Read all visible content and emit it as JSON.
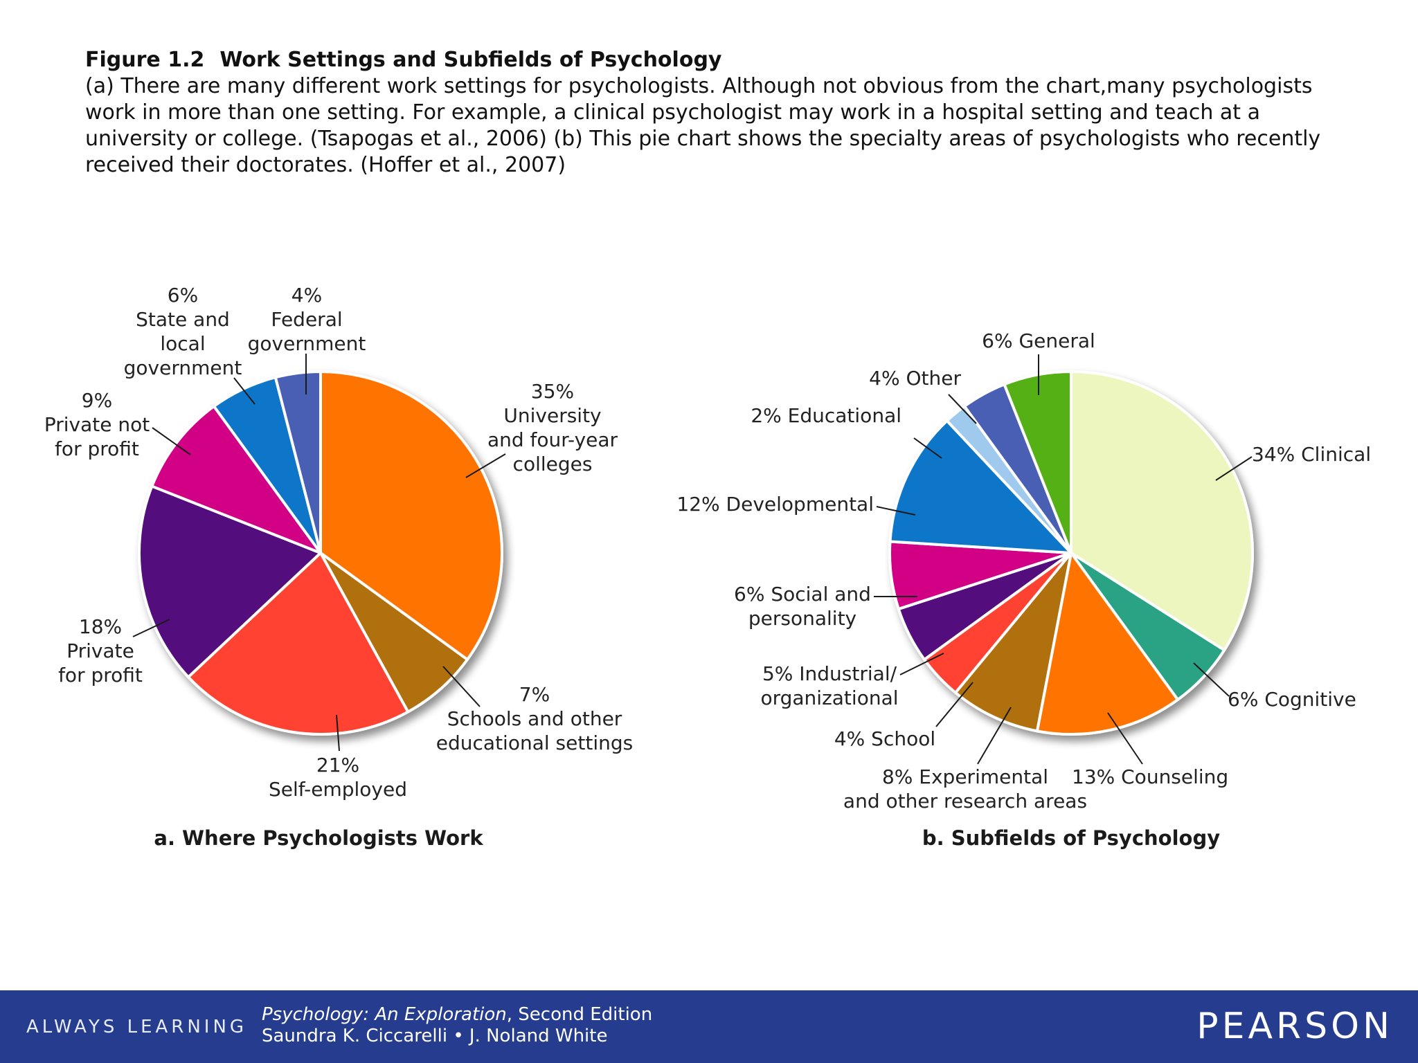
{
  "caption": {
    "figure_number": "Figure 1.2",
    "figure_title": "Work Settings and Subfields of Psychology",
    "text": "(a) There are many different work settings for psychologists. Although not obvious from the chart,many psychologists work in more than one setting. For example, a clinical psychologist may work in a hospital setting and teach at a university or college. (Tsapogas et al., 2006) (b) This pie chart shows the specialty areas of psychologists who recently received their doctorates. (Hoffer et al., 2007)"
  },
  "chart_data": [
    {
      "type": "pie",
      "title": "a. Where Psychologists Work",
      "slices": [
        {
          "label_lines": [
            "35%",
            "University",
            "and four-year",
            "colleges"
          ],
          "value": 35,
          "color": "#ff7300"
        },
        {
          "label_lines": [
            "7%",
            "Schools and other",
            "educational settings"
          ],
          "value": 7,
          "color": "#b06f10"
        },
        {
          "label_lines": [
            "21%",
            "Self-employed"
          ],
          "value": 21,
          "color": "#ff4330"
        },
        {
          "label_lines": [
            "18%",
            "Private",
            "for profit"
          ],
          "value": 18,
          "color": "#52087d"
        },
        {
          "label_lines": [
            "9%",
            "Private not",
            "for profit"
          ],
          "value": 9,
          "color": "#d10585"
        },
        {
          "label_lines": [
            "6%",
            "State and",
            "local",
            "government"
          ],
          "value": 6,
          "color": "#0b76c8"
        },
        {
          "label_lines": [
            "4%",
            "Federal",
            "government"
          ],
          "value": 4,
          "color": "#4a5fb4"
        }
      ]
    },
    {
      "type": "pie",
      "title": "b. Subfields of Psychology",
      "slices": [
        {
          "label_lines": [
            "34% Clinical"
          ],
          "value": 34,
          "color": "#eef6c0"
        },
        {
          "label_lines": [
            "6% Cognitive"
          ],
          "value": 6,
          "color": "#2aa384"
        },
        {
          "label_lines": [
            "13% Counseling"
          ],
          "value": 13,
          "color": "#ff7300"
        },
        {
          "label_lines": [
            "8% Experimental",
            "and other research areas"
          ],
          "value": 8,
          "color": "#b06f10"
        },
        {
          "label_lines": [
            "4% School"
          ],
          "value": 4,
          "color": "#ff4330"
        },
        {
          "label_lines": [
            "5% Industrial/",
            "organizational"
          ],
          "value": 5,
          "color": "#52087d"
        },
        {
          "label_lines": [
            "6% Social and",
            "personality"
          ],
          "value": 6,
          "color": "#d10585"
        },
        {
          "label_lines": [
            "12% Developmental"
          ],
          "value": 12,
          "color": "#0b76c8"
        },
        {
          "label_lines": [
            "2% Educational"
          ],
          "value": 2,
          "color": "#9fcaee"
        },
        {
          "label_lines": [
            "4% Other"
          ],
          "value": 4,
          "color": "#4a5fb4"
        },
        {
          "label_lines": [
            "6% General"
          ],
          "value": 6,
          "color": "#55b016"
        }
      ]
    }
  ],
  "footer": {
    "tagline": "ALWAYS LEARNING",
    "book_title": "Psychology: An Exploration",
    "edition": ", Second Edition",
    "authors": "Saundra K. Ciccarelli • J. Noland White",
    "publisher": "PEARSON"
  }
}
